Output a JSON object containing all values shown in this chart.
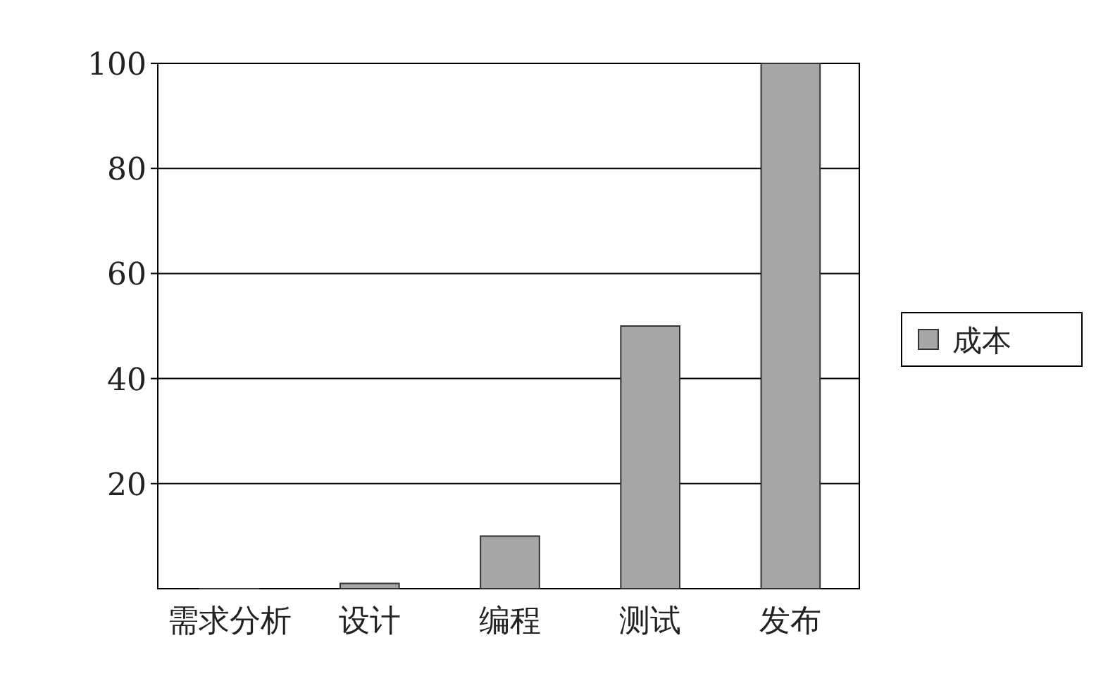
{
  "chart_data": {
    "type": "bar",
    "categories": [
      "需求分析",
      "设计",
      "编程",
      "测试",
      "发布"
    ],
    "series": [
      {
        "name": "成本",
        "color": "#a6a6a6",
        "values": [
          0,
          1,
          10,
          50,
          100
        ]
      }
    ],
    "ylim": [
      0,
      100
    ],
    "yticks": [
      20,
      40,
      60,
      80,
      100
    ],
    "grid": "y",
    "legend": "right"
  }
}
